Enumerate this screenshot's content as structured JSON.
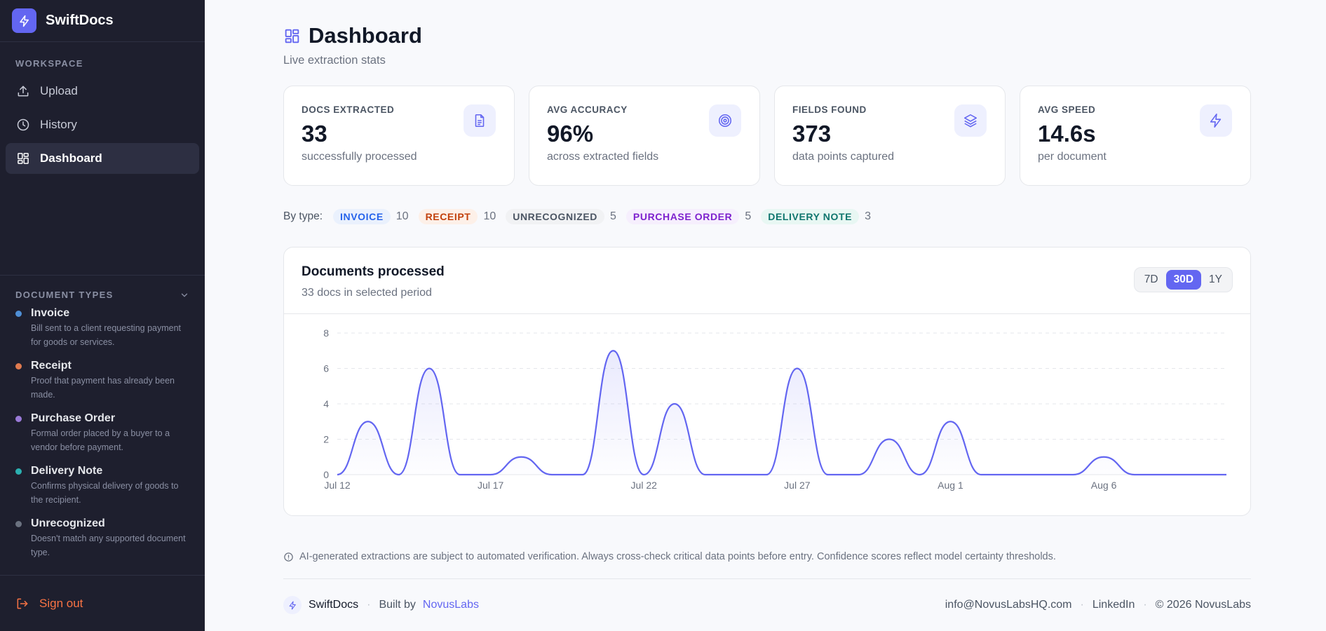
{
  "brand": {
    "name": "SwiftDocs"
  },
  "sidebar": {
    "section_label": "WORKSPACE",
    "items": [
      {
        "label": "Upload",
        "icon": "upload-icon"
      },
      {
        "label": "History",
        "icon": "clock-icon"
      },
      {
        "label": "Dashboard",
        "icon": "grid-icon",
        "active": true
      }
    ],
    "doc_types_label": "DOCUMENT TYPES",
    "doc_types": [
      {
        "name": "Invoice",
        "desc": "Bill sent to a client requesting payment for goods or services.",
        "color": "#4f8fd6"
      },
      {
        "name": "Receipt",
        "desc": "Proof that payment has already been made.",
        "color": "#e07a4f"
      },
      {
        "name": "Purchase Order",
        "desc": "Formal order placed by a buyer to a vendor before payment.",
        "color": "#9a7ad8"
      },
      {
        "name": "Delivery Note",
        "desc": "Confirms physical delivery of goods to the recipient.",
        "color": "#2bb0b0"
      },
      {
        "name": "Unrecognized",
        "desc": "Doesn't match any supported document type.",
        "color": "#6b7280"
      }
    ],
    "signout_label": "Sign out"
  },
  "page": {
    "title": "Dashboard",
    "subtitle": "Live extraction stats"
  },
  "cards": [
    {
      "label": "DOCS EXTRACTED",
      "value": "33",
      "sub": "successfully processed",
      "icon": "document-icon"
    },
    {
      "label": "AVG ACCURACY",
      "value": "96%",
      "sub": "across extracted fields",
      "icon": "target-icon"
    },
    {
      "label": "FIELDS FOUND",
      "value": "373",
      "sub": "data points captured",
      "icon": "layers-icon"
    },
    {
      "label": "AVG SPEED",
      "value": "14.6s",
      "sub": "per document",
      "icon": "bolt-icon"
    }
  ],
  "by_type": {
    "label": "By type:",
    "tags": [
      {
        "name": "INVOICE",
        "count": "10",
        "fg": "#2563eb",
        "bg": "#eaf1fd"
      },
      {
        "name": "RECEIPT",
        "count": "10",
        "fg": "#c2410c",
        "bg": "#fdf0e8"
      },
      {
        "name": "UNRECOGNIZED",
        "count": "5",
        "fg": "#4b5563",
        "bg": "#f1f2f4"
      },
      {
        "name": "PURCHASE ORDER",
        "count": "5",
        "fg": "#7e22ce",
        "bg": "#f6effd"
      },
      {
        "name": "DELIVERY NOTE",
        "count": "3",
        "fg": "#0f766e",
        "bg": "#e8f7f3"
      }
    ]
  },
  "chart_panel": {
    "title": "Documents processed",
    "subtitle": "33 docs in selected period",
    "ranges": [
      "7D",
      "30D",
      "1Y"
    ],
    "active_range": "30D"
  },
  "chart_data": {
    "type": "area",
    "x": [
      "2025-07-12",
      "2025-07-13",
      "2025-07-14",
      "2025-07-15",
      "2025-07-16",
      "2025-07-17",
      "2025-07-18",
      "2025-07-19",
      "2025-07-20",
      "2025-07-21",
      "2025-07-22",
      "2025-07-23",
      "2025-07-24",
      "2025-07-25",
      "2025-07-26",
      "2025-07-27",
      "2025-07-28",
      "2025-07-29",
      "2025-07-30",
      "2025-07-31",
      "2025-08-01",
      "2025-08-02",
      "2025-08-03",
      "2025-08-04",
      "2025-08-05",
      "2025-08-06",
      "2025-08-07",
      "2025-08-08",
      "2025-08-09",
      "2025-08-10"
    ],
    "values": [
      0,
      3,
      0,
      6,
      0,
      0,
      1,
      0,
      0,
      7,
      0,
      4,
      0,
      0,
      0,
      6,
      0,
      0,
      2,
      0,
      3,
      0,
      0,
      0,
      0,
      1,
      0,
      0,
      0,
      0
    ],
    "xticks": [
      "Jul 12",
      "Jul 17",
      "Jul 22",
      "Jul 27",
      "Aug 1",
      "Aug 6"
    ],
    "xtick_index": [
      0,
      5,
      10,
      15,
      20,
      25
    ],
    "yticks": [
      0,
      2,
      4,
      6,
      8
    ],
    "ylim": [
      0,
      8
    ],
    "grid": true,
    "color": "#6366f1"
  },
  "disclaimer": "AI-generated extractions are subject to automated verification. Always cross-check critical data points before entry. Confidence scores reflect model certainty thresholds.",
  "footer": {
    "brand": "SwiftDocs",
    "built_by": "Built by",
    "built_by_link": "NovusLabs",
    "email": "info@NovusLabsHQ.com",
    "linkedin": "LinkedIn",
    "copyright": "© 2026 NovusLabs"
  }
}
